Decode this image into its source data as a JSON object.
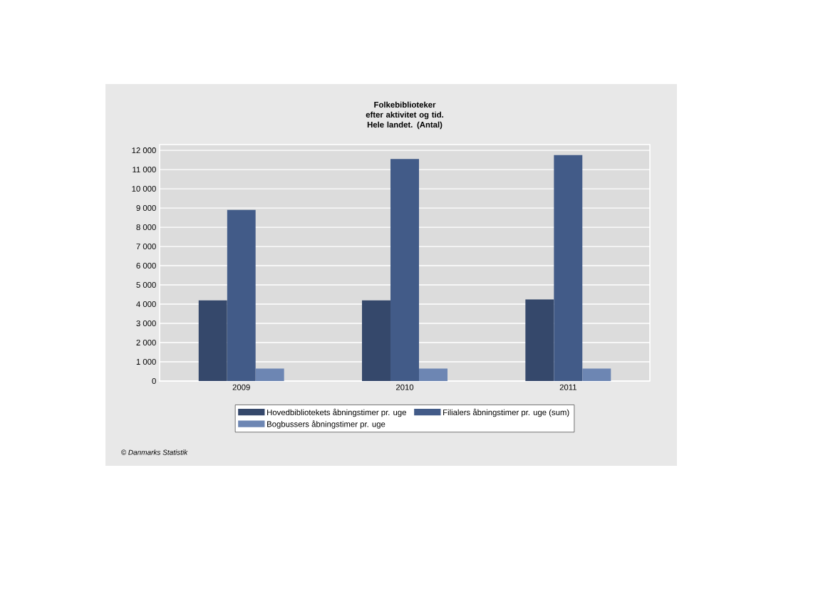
{
  "chart_data": {
    "type": "bar",
    "title": "Folkebiblioteker efter aktivitet og tid. Hele landet. (Antal)",
    "categories": [
      "2009",
      "2010",
      "2011"
    ],
    "series": [
      {
        "name": "Hovedbibliotekets åbningstimer pr. uge",
        "color": "#35486b",
        "values": [
          4200,
          4200,
          4250
        ]
      },
      {
        "name": "Filialers åbningstimer pr. uge (sum)",
        "color": "#425b88",
        "values": [
          8900,
          11550,
          11750
        ]
      },
      {
        "name": "Bogbussers åbningstimer pr. uge",
        "color": "#6d86b3",
        "values": [
          650,
          650,
          650
        ]
      }
    ],
    "ylim": [
      0,
      12300
    ],
    "yticks": [
      0,
      {
        "value": 1000,
        "label": "1 000"
      },
      {
        "value": 2000,
        "label": "2 000"
      },
      {
        "value": 3000,
        "label": "3 000"
      },
      {
        "value": 4000,
        "label": "4 000"
      },
      {
        "value": 5000,
        "label": "5 000"
      },
      {
        "value": 6000,
        "label": "6 000"
      },
      {
        "value": 7000,
        "label": "7 000"
      },
      {
        "value": 8000,
        "label": "8 000"
      },
      {
        "value": 9000,
        "label": "9 000"
      },
      {
        "value": 10000,
        "label": "10 000"
      },
      {
        "value": 11000,
        "label": "11 000"
      },
      {
        "value": 12000,
        "label": "12 000"
      }
    ],
    "grid": "y",
    "legend": "bottom",
    "annotations": [
      "© Danmarks Statistik"
    ]
  }
}
